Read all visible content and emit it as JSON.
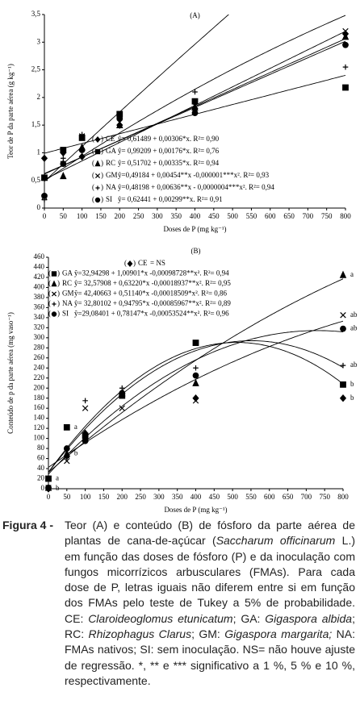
{
  "chart_data": [
    {
      "type": "scatter",
      "title": "(A)",
      "xlabel": "Doses de P (mg kg⁻¹)",
      "ylabel": "Teor de P da parte aérea (g kg⁻¹)",
      "x": [
        0,
        50,
        100,
        200,
        400,
        800
      ],
      "xlim": [
        0,
        800
      ],
      "xticks": [
        0,
        50,
        100,
        150,
        200,
        250,
        300,
        350,
        400,
        450,
        500,
        550,
        600,
        650,
        700,
        750,
        800
      ],
      "ylim": [
        0,
        3.5
      ],
      "yticks": [
        0,
        {
          "value": 0.5,
          "label": "0,5"
        },
        1,
        {
          "value": 1.5,
          "label": "1,5"
        },
        2,
        {
          "value": 2.5,
          "label": "2,5"
        },
        3,
        {
          "value": 3.5,
          "label": "3,5"
        }
      ],
      "series": [
        {
          "name": "CE",
          "marker": "diamond",
          "color": "#000000",
          "values": [
            0.9,
            1.0,
            0.93,
            1.5,
            1.8,
            3.15
          ],
          "equation": "ŷ= 0,61489 + 0,00306*x. R²= 0,90",
          "fit": [
            0.61489,
            0.00306
          ]
        },
        {
          "name": "GA",
          "marker": "square",
          "color": "#000000",
          "values": [
            0.55,
            1.05,
            1.27,
            1.7,
            1.93,
            2.18
          ],
          "equation": "ŷ= 0,99209 + 0,00176*x. R²= 0,76",
          "fit": [
            0.99209,
            0.00176
          ]
        },
        {
          "name": "RC",
          "marker": "triangle",
          "color": "#000000",
          "values": [
            0.55,
            0.58,
            1.1,
            1.5,
            1.82,
            3.1
          ],
          "equation": "ŷ= 0,51702 + 0,00335*x. R²= 0,94",
          "fit": [
            0.51702,
            0.00335
          ]
        },
        {
          "name": "GM",
          "marker": "x",
          "color": "#000000",
          "values": [
            0.2,
            0.8,
            1.3,
            1.55,
            1.85,
            3.2
          ],
          "equation": "ŷ=0,49184 + 0,00454**x -0,000001***x². R²= 0,93",
          "fit": [
            0.49184,
            0.00454,
            -1e-06
          ]
        },
        {
          "name": "NA",
          "marker": "plus",
          "color": "#000000",
          "values": [
            0.15,
            0.9,
            1.33,
            1.6,
            2.1,
            2.55
          ],
          "equation": "ŷ=0,48198 + 0,00636**x - 0,0000004***x². R²= 0,94",
          "fit": [
            0.48198,
            0.00636,
            -4e-07
          ]
        },
        {
          "name": "SI",
          "marker": "circle",
          "color": "#000000",
          "values": [
            0.22,
            0.8,
            1.05,
            1.62,
            1.72,
            2.95
          ],
          "equation": "ŷ= 0,62441 + 0,00299**x. R²= 0,91",
          "fit": [
            0.62441,
            0.00299
          ]
        }
      ]
    },
    {
      "type": "scatter",
      "title": "(B)",
      "xlabel": "Doses de P (mg kg⁻¹)",
      "ylabel": "Conteúdo de p da parte aérea (mg vaso⁻¹)",
      "x": [
        0,
        50,
        100,
        200,
        400,
        800
      ],
      "xlim": [
        0,
        800
      ],
      "xticks": [
        0,
        50,
        100,
        150,
        200,
        250,
        300,
        350,
        400,
        450,
        500,
        550,
        600,
        650,
        700,
        750,
        800
      ],
      "ylim": [
        0,
        460
      ],
      "yticks": [
        0,
        20,
        40,
        60,
        80,
        100,
        120,
        140,
        160,
        180,
        200,
        220,
        240,
        260,
        280,
        300,
        320,
        340,
        360,
        380,
        400,
        420,
        440,
        460
      ],
      "series": [
        {
          "name": "CE",
          "marker": "diamond",
          "color": "#000000",
          "values": [
            0,
            65,
            110,
            190,
            180,
            180
          ],
          "equation": "= NS",
          "letters": [
            "b",
            null,
            null,
            null,
            null,
            "b"
          ]
        },
        {
          "name": "GA",
          "marker": "square",
          "color": "#000000",
          "values": [
            20,
            122,
            105,
            185,
            290,
            207
          ],
          "equation": "ŷ=32,94298 + 1,00901*x -0,00098728**x². R²= 0,94",
          "fit": [
            32.94298,
            1.00901,
            -0.00098728
          ],
          "letters": [
            "a",
            "a",
            null,
            null,
            null,
            "b"
          ]
        },
        {
          "name": "RC",
          "marker": "triangle",
          "color": "#000000",
          "values": [
            2,
            70,
            100,
            190,
            210,
            425
          ],
          "equation": "ŷ= 32,57908 + 0,63220*x -0,00018937**x². R²= 0,95",
          "fit": [
            32.57908,
            0.6322,
            -0.00018937
          ],
          "letters": [
            null,
            "b",
            null,
            null,
            null,
            "a"
          ]
        },
        {
          "name": "GM",
          "marker": "x",
          "color": "#000000",
          "values": [
            2,
            55,
            160,
            160,
            175,
            345
          ],
          "equation": "ŷ= 42,40663 + 0,51140*x -0,00018509*x². R²= 0,86",
          "fit": [
            42.40663,
            0.5114,
            -0.00018509
          ],
          "letters": [
            null,
            null,
            null,
            null,
            null,
            "ab"
          ]
        },
        {
          "name": "NA",
          "marker": "plus",
          "color": "#000000",
          "values": [
            2,
            62,
            175,
            200,
            240,
            245
          ],
          "equation": "ŷ= 32,80102 + 0,94795*x -0,00085967**x². R²= 0,89",
          "fit": [
            32.80102,
            0.94795,
            -0.00085967
          ],
          "letters": [
            null,
            null,
            null,
            null,
            null,
            "ab"
          ]
        },
        {
          "name": "SI",
          "marker": "circle",
          "color": "#000000",
          "values": [
            2,
            80,
            95,
            190,
            225,
            318
          ],
          "equation": "ŷ=29,08401 + 0,78147*x -0,00053524**x². R²= 0,96",
          "fit": [
            29.08401,
            0.78147,
            -0.00053524
          ],
          "letters": [
            null,
            null,
            null,
            null,
            null,
            "ab"
          ]
        }
      ]
    }
  ],
  "caption": {
    "label": "Figura 4 -",
    "segments": [
      {
        "text": "Teor (A) e conteúdo (B) de fósforo da parte aérea de plantas de cana-de-açúcar ("
      },
      {
        "text": "Saccharum officinarum",
        "italic": true
      },
      {
        "text": " L.) em função das doses de fósforo (P) e da inoculação com fungos micorrízicos arbusculares (FMAs). Para cada dose de P, letras iguais não diferem entre si em função dos FMAs pelo teste de Tukey a 5% de probabilidade. CE: "
      },
      {
        "text": "Claroideoglomus etunicatum",
        "italic": true
      },
      {
        "text": "; GA: "
      },
      {
        "text": "Gigaspora albida",
        "italic": true
      },
      {
        "text": "; RC: "
      },
      {
        "text": "Rhizophagus Clarus",
        "italic": true
      },
      {
        "text": "; GM: "
      },
      {
        "text": "Gigaspora margarita;",
        "italic": true
      },
      {
        "text": " NA: FMAs nativos; SI: sem inoculação. NS= não houve ajuste de regressão. *, ** e *** significativo a 1 %, 5 % e 10 %, respectivamente."
      }
    ]
  }
}
